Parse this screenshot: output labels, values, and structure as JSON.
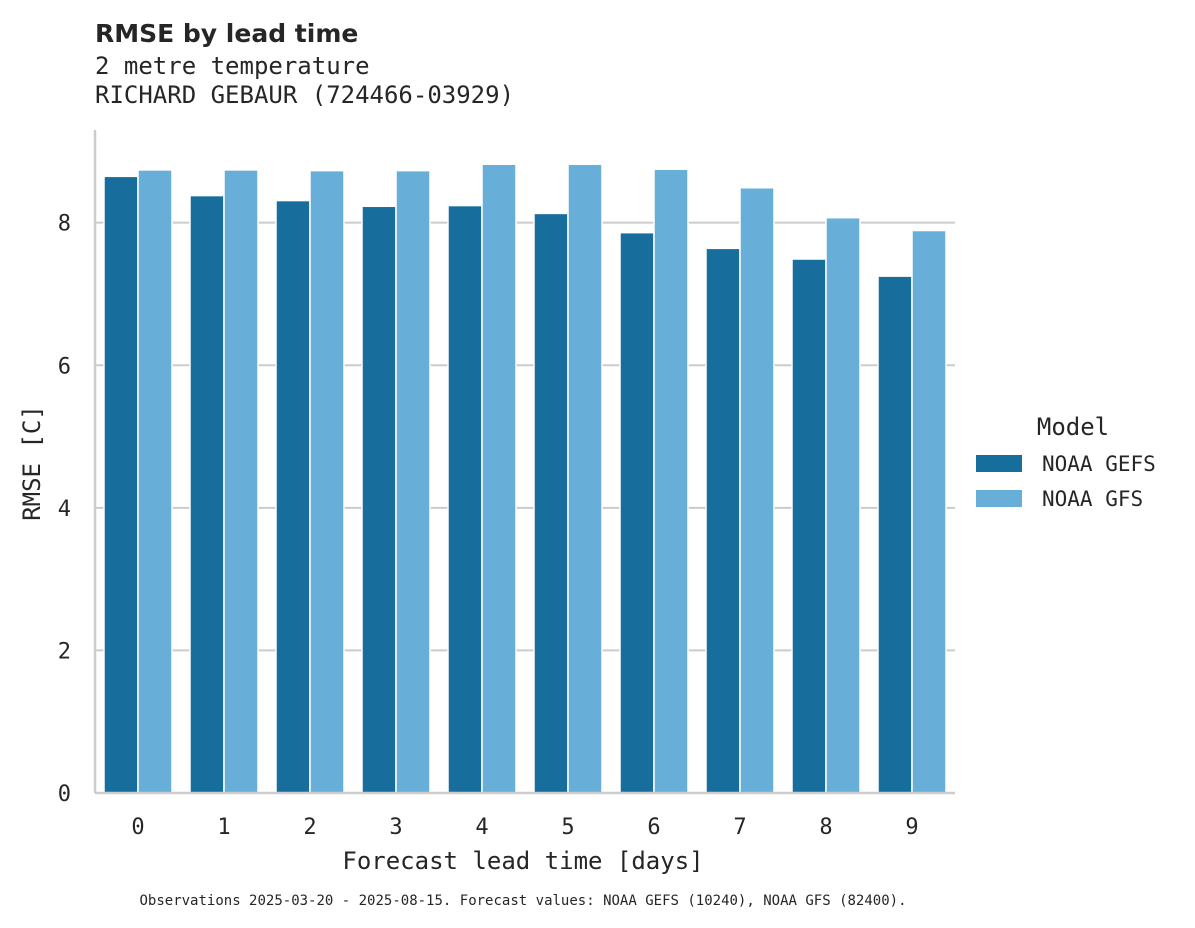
{
  "chart_data": {
    "type": "bar",
    "title": "RMSE by lead time",
    "subtitle_lines": [
      "2 metre temperature",
      "RICHARD GEBAUR (724466-03929)"
    ],
    "xlabel": "Forecast lead time [days]",
    "ylabel": "RMSE [C]",
    "categories": [
      "0",
      "1",
      "2",
      "3",
      "4",
      "5",
      "6",
      "7",
      "8",
      "9"
    ],
    "ylim": [
      0,
      9.3
    ],
    "yticks": [
      0,
      2,
      4,
      6,
      8
    ],
    "grid": true,
    "legend": {
      "title": "Model",
      "placement": "right"
    },
    "series": [
      {
        "name": "NOAA GEFS",
        "color": "#176d9c",
        "values": [
          8.65,
          8.38,
          8.31,
          8.23,
          8.24,
          8.13,
          7.86,
          7.64,
          7.49,
          7.25
        ]
      },
      {
        "name": "NOAA GFS",
        "color": "#67aed8",
        "values": [
          8.74,
          8.74,
          8.73,
          8.73,
          8.82,
          8.82,
          8.75,
          8.49,
          8.07,
          7.89
        ]
      }
    ],
    "footnote": "Observations 2025-03-20 - 2025-08-15. Forecast values: NOAA GEFS (10240), NOAA GFS (82400)."
  }
}
